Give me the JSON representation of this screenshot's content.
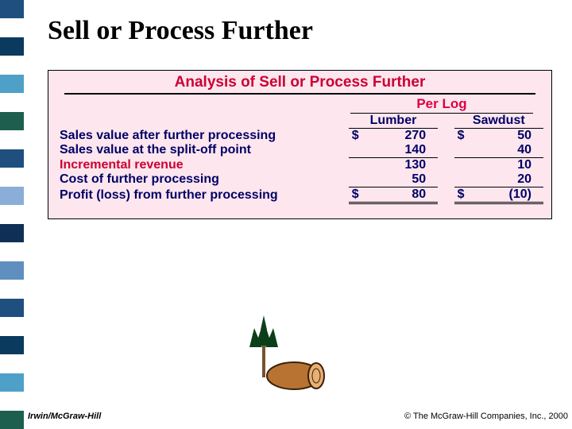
{
  "sidebar_colors": [
    "#1f4f7f",
    "#ffffff",
    "#0a3a5d",
    "#ffffff",
    "#4fa0c8",
    "#ffffff",
    "#1d5f4f",
    "#ffffff",
    "#1f4f7f",
    "#ffffff",
    "#8aaed8",
    "#ffffff",
    "#0f2f55",
    "#ffffff",
    "#5f8fbf",
    "#ffffff",
    "#1f4f7f",
    "#ffffff",
    "#0a3a5d",
    "#ffffff",
    "#4fa0c8",
    "#ffffff",
    "#1d5f4f"
  ],
  "title": "Sell or Process Further",
  "box": {
    "heading": "Analysis of Sell or Process Further",
    "per_log": "Per Log",
    "columns": [
      "Lumber",
      "Sawdust"
    ],
    "rows": [
      {
        "label": "Sales value after further processing",
        "lumber_sym": "$",
        "lumber": "270",
        "sawdust_sym": "$",
        "sawdust": "50",
        "style": "lbl"
      },
      {
        "label": "Sales value at the split-off point",
        "lumber_sym": "",
        "lumber": "140",
        "sawdust_sym": "",
        "sawdust": "40",
        "style": "lbl",
        "underline": true
      },
      {
        "label": "Incremental revenue",
        "lumber_sym": "",
        "lumber": "130",
        "sawdust_sym": "",
        "sawdust": "10",
        "style": "lbl-red"
      },
      {
        "label": "Cost of further processing",
        "lumber_sym": "",
        "lumber": "50",
        "sawdust_sym": "",
        "sawdust": "20",
        "style": "lbl",
        "underline": true
      },
      {
        "label": "Profit (loss) from further processing",
        "lumber_sym": "$",
        "lumber": "80",
        "sawdust_sym": "$",
        "sawdust": "(10)",
        "style": "lbl",
        "double": true
      }
    ]
  },
  "footer": {
    "left": "Irwin/McGraw-Hill",
    "right": "© The McGraw-Hill Companies, Inc., 2000"
  },
  "clipart": {
    "log_fill": "#b87333",
    "log_end": "#e8b074",
    "log_stroke": "#3a1f0a",
    "bush_fill": "#0a3f1a",
    "handle": "#7a5230"
  }
}
